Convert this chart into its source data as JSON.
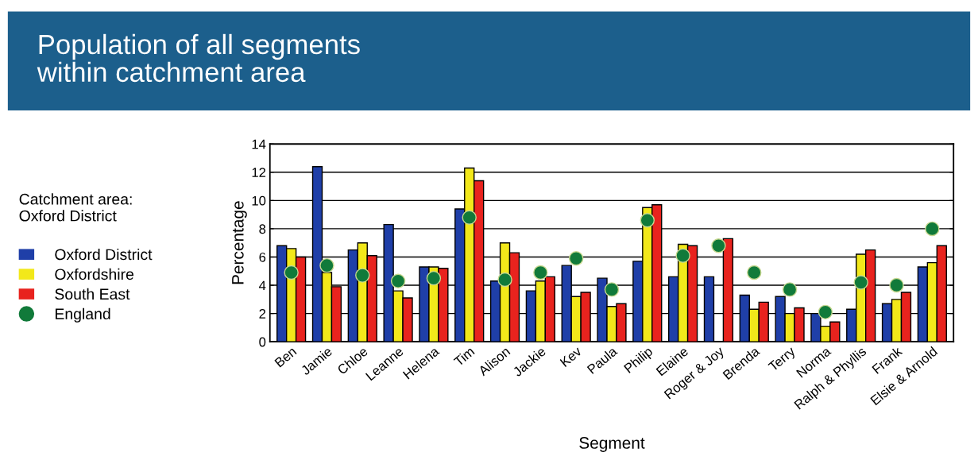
{
  "chart_data": {
    "type": "bar",
    "title": "Population of all segments\nwithin catchment area",
    "xlabel": "Segment",
    "ylabel": "Percentage",
    "legend_title": "Catchment area:\nOxford District",
    "categories": [
      "Ben",
      "Jamie",
      "Chloe",
      "Leanne",
      "Helena",
      "Tim",
      "Alison",
      "Jackie",
      "Kev",
      "Paula",
      "Philip",
      "Elaine",
      "Roger & Joy",
      "Brenda",
      "Terry",
      "Norma",
      "Ralph & Phyllis",
      "Frank",
      "Elsie & Arnold"
    ],
    "series": [
      {
        "name": "Oxford District",
        "color": "#1f3fa8",
        "values": [
          6.8,
          12.4,
          6.5,
          8.3,
          5.3,
          9.4,
          4.3,
          3.6,
          5.4,
          4.5,
          5.7,
          4.6,
          4.6,
          3.3,
          3.2,
          2.0,
          2.3,
          2.7,
          5.3
        ]
      },
      {
        "name": "Oxfordshire",
        "color": "#f2e81a",
        "values": [
          6.6,
          4.9,
          7.0,
          3.6,
          5.3,
          12.3,
          7.0,
          4.3,
          3.2,
          2.5,
          9.5,
          6.9,
          null,
          2.3,
          2.0,
          1.1,
          6.2,
          3.0,
          5.6
        ]
      },
      {
        "name": "South East",
        "color": "#e8231e",
        "values": [
          6.0,
          3.9,
          6.1,
          3.1,
          5.2,
          11.4,
          6.3,
          4.6,
          3.5,
          2.7,
          9.7,
          6.8,
          7.3,
          2.8,
          2.4,
          1.4,
          6.5,
          3.5,
          6.8
        ]
      },
      {
        "name": "England",
        "type": "scatter",
        "color": "#117a3a",
        "values": [
          4.9,
          5.4,
          4.7,
          4.3,
          4.5,
          8.8,
          4.4,
          4.9,
          5.9,
          3.7,
          8.6,
          6.1,
          6.8,
          4.9,
          3.7,
          2.1,
          4.2,
          4.0,
          8.0
        ]
      }
    ],
    "ylim": [
      0,
      14
    ],
    "yticks": [
      0,
      2,
      4,
      6,
      8,
      10,
      12,
      14
    ],
    "grid": "y",
    "legend": "left",
    "marker": "circle"
  }
}
